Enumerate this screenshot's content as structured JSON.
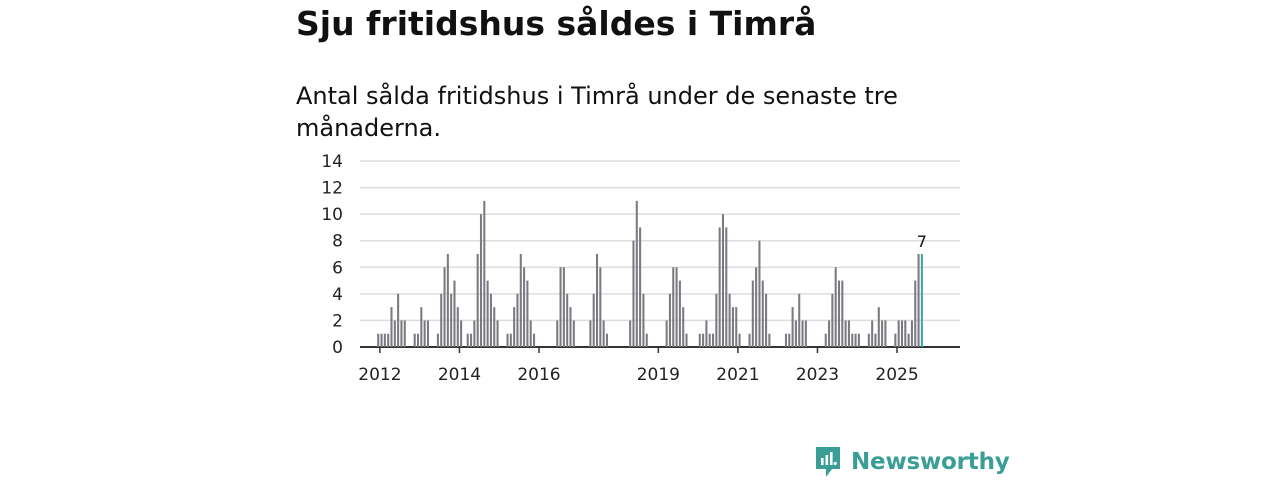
{
  "title": "Sju fritidshus såldes i Timrå",
  "subtitle": "Antal sålda fritidshus i Timrå under de senaste tre månaderna.",
  "brand": {
    "name": "Newsworthy",
    "icon": "newsworthy-logo-icon",
    "color": "#3a9e97"
  },
  "colors": {
    "bar": "#7a7a80",
    "highlight": "#3aa9a0",
    "grid": "#dddddd",
    "axis": "#333333"
  },
  "chart_data": {
    "type": "bar",
    "title": "Antal sålda fritidshus i Timrå under de senaste tre månaderna.",
    "xlabel": "",
    "ylabel": "",
    "ylim": [
      0,
      14
    ],
    "yticks": [
      0,
      2,
      4,
      6,
      8,
      10,
      12,
      14
    ],
    "grid": true,
    "xlim": [
      "2011-07",
      "2026-08"
    ],
    "xticks": [
      {
        "label": "2012",
        "date": "2012-01"
      },
      {
        "label": "2014",
        "date": "2014-01"
      },
      {
        "label": "2016",
        "date": "2016-01"
      },
      {
        "label": "2019",
        "date": "2019-01"
      },
      {
        "label": "2021",
        "date": "2021-01"
      },
      {
        "label": "2023",
        "date": "2023-01"
      },
      {
        "label": "2025",
        "date": "2025-01"
      }
    ],
    "highlight_label": "7",
    "series": [
      {
        "name": "Antal sålda fritidshus",
        "points": [
          {
            "date": "2011-12",
            "value": 1
          },
          {
            "date": "2012-01",
            "value": 1
          },
          {
            "date": "2012-02",
            "value": 1
          },
          {
            "date": "2012-03",
            "value": 1
          },
          {
            "date": "2012-04",
            "value": 3
          },
          {
            "date": "2012-05",
            "value": 2
          },
          {
            "date": "2012-06",
            "value": 4
          },
          {
            "date": "2012-07",
            "value": 2
          },
          {
            "date": "2012-08",
            "value": 2
          },
          {
            "date": "2012-11",
            "value": 1
          },
          {
            "date": "2012-12",
            "value": 1
          },
          {
            "date": "2013-01",
            "value": 3
          },
          {
            "date": "2013-02",
            "value": 2
          },
          {
            "date": "2013-03",
            "value": 2
          },
          {
            "date": "2013-06",
            "value": 1
          },
          {
            "date": "2013-07",
            "value": 4
          },
          {
            "date": "2013-08",
            "value": 6
          },
          {
            "date": "2013-09",
            "value": 7
          },
          {
            "date": "2013-10",
            "value": 4
          },
          {
            "date": "2013-11",
            "value": 5
          },
          {
            "date": "2013-12",
            "value": 3
          },
          {
            "date": "2014-01",
            "value": 2
          },
          {
            "date": "2014-03",
            "value": 1
          },
          {
            "date": "2014-04",
            "value": 1
          },
          {
            "date": "2014-05",
            "value": 2
          },
          {
            "date": "2014-06",
            "value": 7
          },
          {
            "date": "2014-07",
            "value": 10
          },
          {
            "date": "2014-08",
            "value": 11
          },
          {
            "date": "2014-09",
            "value": 5
          },
          {
            "date": "2014-10",
            "value": 4
          },
          {
            "date": "2014-11",
            "value": 3
          },
          {
            "date": "2014-12",
            "value": 2
          },
          {
            "date": "2015-03",
            "value": 1
          },
          {
            "date": "2015-04",
            "value": 1
          },
          {
            "date": "2015-05",
            "value": 3
          },
          {
            "date": "2015-06",
            "value": 4
          },
          {
            "date": "2015-07",
            "value": 7
          },
          {
            "date": "2015-08",
            "value": 6
          },
          {
            "date": "2015-09",
            "value": 5
          },
          {
            "date": "2015-10",
            "value": 2
          },
          {
            "date": "2015-11",
            "value": 1
          },
          {
            "date": "2016-06",
            "value": 2
          },
          {
            "date": "2016-07",
            "value": 6
          },
          {
            "date": "2016-08",
            "value": 6
          },
          {
            "date": "2016-09",
            "value": 4
          },
          {
            "date": "2016-10",
            "value": 3
          },
          {
            "date": "2016-11",
            "value": 2
          },
          {
            "date": "2017-04",
            "value": 2
          },
          {
            "date": "2017-05",
            "value": 4
          },
          {
            "date": "2017-06",
            "value": 7
          },
          {
            "date": "2017-07",
            "value": 6
          },
          {
            "date": "2017-08",
            "value": 2
          },
          {
            "date": "2017-09",
            "value": 1
          },
          {
            "date": "2018-04",
            "value": 2
          },
          {
            "date": "2018-05",
            "value": 8
          },
          {
            "date": "2018-06",
            "value": 11
          },
          {
            "date": "2018-07",
            "value": 9
          },
          {
            "date": "2018-08",
            "value": 4
          },
          {
            "date": "2018-09",
            "value": 1
          },
          {
            "date": "2019-03",
            "value": 2
          },
          {
            "date": "2019-04",
            "value": 4
          },
          {
            "date": "2019-05",
            "value": 6
          },
          {
            "date": "2019-06",
            "value": 6
          },
          {
            "date": "2019-07",
            "value": 5
          },
          {
            "date": "2019-08",
            "value": 3
          },
          {
            "date": "2019-09",
            "value": 1
          },
          {
            "date": "2020-01",
            "value": 1
          },
          {
            "date": "2020-02",
            "value": 1
          },
          {
            "date": "2020-03",
            "value": 2
          },
          {
            "date": "2020-04",
            "value": 1
          },
          {
            "date": "2020-05",
            "value": 1
          },
          {
            "date": "2020-06",
            "value": 4
          },
          {
            "date": "2020-07",
            "value": 9
          },
          {
            "date": "2020-08",
            "value": 10
          },
          {
            "date": "2020-09",
            "value": 9
          },
          {
            "date": "2020-10",
            "value": 4
          },
          {
            "date": "2020-11",
            "value": 3
          },
          {
            "date": "2020-12",
            "value": 3
          },
          {
            "date": "2021-01",
            "value": 1
          },
          {
            "date": "2021-04",
            "value": 1
          },
          {
            "date": "2021-05",
            "value": 5
          },
          {
            "date": "2021-06",
            "value": 6
          },
          {
            "date": "2021-07",
            "value": 8
          },
          {
            "date": "2021-08",
            "value": 5
          },
          {
            "date": "2021-09",
            "value": 4
          },
          {
            "date": "2021-10",
            "value": 1
          },
          {
            "date": "2022-03",
            "value": 1
          },
          {
            "date": "2022-04",
            "value": 1
          },
          {
            "date": "2022-05",
            "value": 3
          },
          {
            "date": "2022-06",
            "value": 2
          },
          {
            "date": "2022-07",
            "value": 4
          },
          {
            "date": "2022-08",
            "value": 2
          },
          {
            "date": "2022-09",
            "value": 2
          },
          {
            "date": "2023-03",
            "value": 1
          },
          {
            "date": "2023-04",
            "value": 2
          },
          {
            "date": "2023-05",
            "value": 4
          },
          {
            "date": "2023-06",
            "value": 6
          },
          {
            "date": "2023-07",
            "value": 5
          },
          {
            "date": "2023-08",
            "value": 5
          },
          {
            "date": "2023-09",
            "value": 2
          },
          {
            "date": "2023-10",
            "value": 2
          },
          {
            "date": "2023-11",
            "value": 1
          },
          {
            "date": "2023-12",
            "value": 1
          },
          {
            "date": "2024-01",
            "value": 1
          },
          {
            "date": "2024-04",
            "value": 1
          },
          {
            "date": "2024-05",
            "value": 2
          },
          {
            "date": "2024-06",
            "value": 1
          },
          {
            "date": "2024-07",
            "value": 3
          },
          {
            "date": "2024-08",
            "value": 2
          },
          {
            "date": "2024-09",
            "value": 2
          },
          {
            "date": "2024-12",
            "value": 1
          },
          {
            "date": "2025-01",
            "value": 2
          },
          {
            "date": "2025-02",
            "value": 2
          },
          {
            "date": "2025-03",
            "value": 2
          },
          {
            "date": "2025-04",
            "value": 1
          },
          {
            "date": "2025-05",
            "value": 2
          },
          {
            "date": "2025-06",
            "value": 5
          },
          {
            "date": "2025-07",
            "value": 7
          },
          {
            "date": "2025-08",
            "value": 7,
            "highlight": true
          }
        ]
      }
    ]
  }
}
